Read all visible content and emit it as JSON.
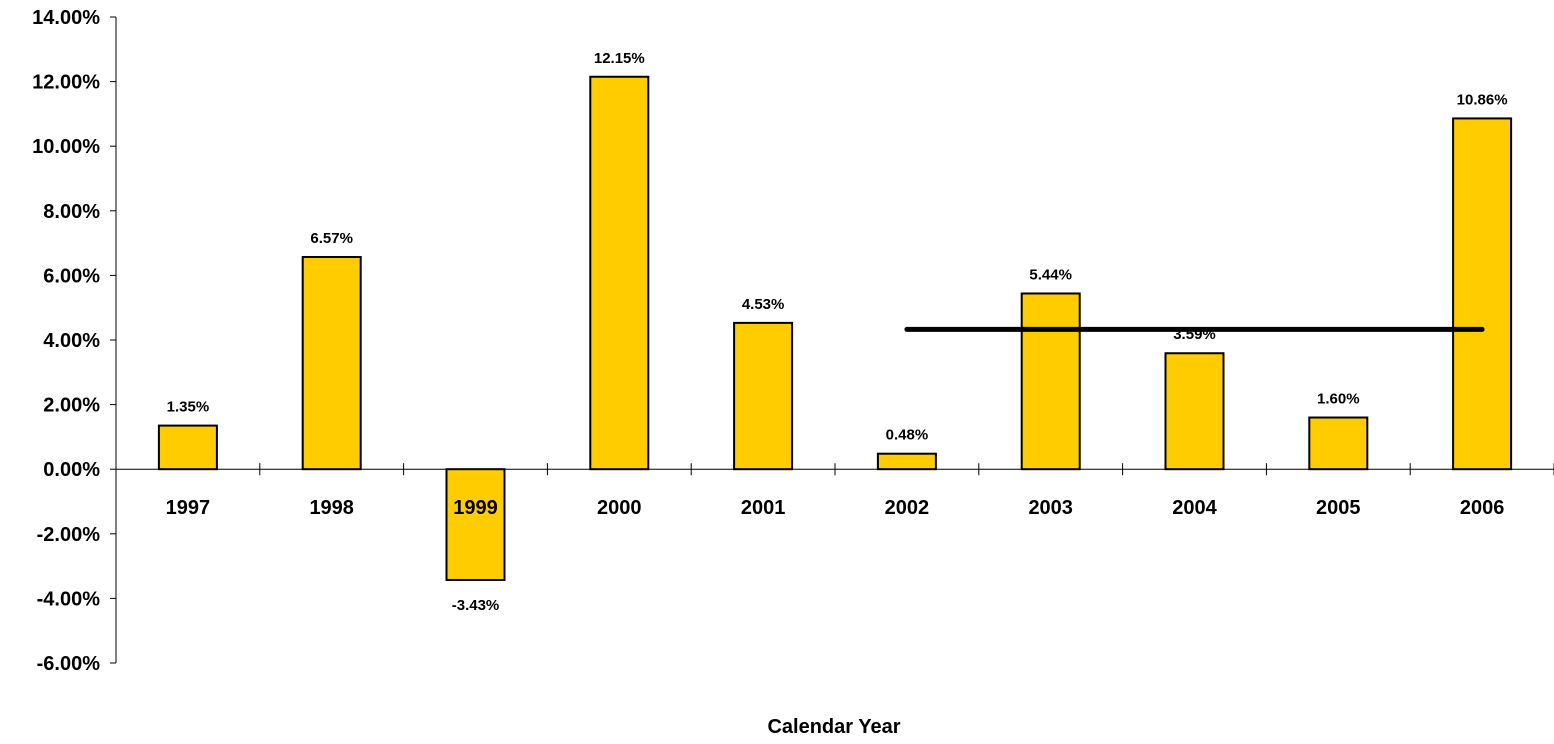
{
  "chart_data": {
    "type": "bar",
    "title": "",
    "xlabel": "Calendar Year",
    "ylabel": "",
    "categories": [
      "1997",
      "1998",
      "1999",
      "2000",
      "2001",
      "2002",
      "2003",
      "2004",
      "2005",
      "2006"
    ],
    "values": [
      1.35,
      6.57,
      -3.43,
      12.15,
      4.53,
      0.48,
      5.44,
      3.59,
      1.6,
      10.86
    ],
    "data_labels": [
      "1.35%",
      "6.57%",
      "-3.43%",
      "12.15%",
      "4.53%",
      "0.48%",
      "5.44%",
      "3.59%",
      "1.60%",
      "10.86%"
    ],
    "ylim": [
      -6,
      14
    ],
    "y_ticks": [
      14,
      12,
      10,
      8,
      6,
      4,
      2,
      0,
      -2,
      -4,
      -6
    ],
    "y_tick_labels": [
      "14.00%",
      "12.00%",
      "10.00%",
      "8.00%",
      "6.00%",
      "4.00%",
      "2.00%",
      "0.00%",
      "-2.00%",
      "-4.00%",
      "-6.00%"
    ],
    "reference_line": {
      "value": 4.33,
      "from_category": "2002",
      "to_category": "2006"
    },
    "grid": false,
    "legend": "none",
    "bar_color": "#FFCC00",
    "bar_border_color": "#000000",
    "line_color": "#000000"
  }
}
